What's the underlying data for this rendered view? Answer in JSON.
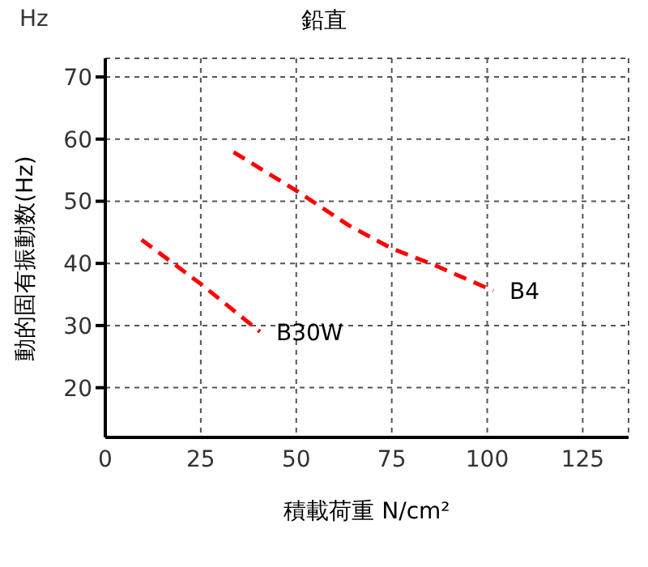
{
  "chart_data": {
    "type": "line",
    "title": "鉛直",
    "xlabel": "積載荷重 N/cm²",
    "ylabel": "動的固有振動数(Hz)",
    "annotations": [
      "Hz"
    ],
    "series": [
      {
        "name": "B30W",
        "color": "#ff0000",
        "x": [
          9.5,
          25,
          40.5
        ],
        "values": [
          43.8,
          36.7,
          29.0
        ]
      },
      {
        "name": "B4",
        "color": "#ff0000",
        "x": [
          33.6,
          50,
          63.8,
          75,
          86.3,
          101.6
        ],
        "values": [
          57.9,
          51.7,
          46.1,
          42.4,
          39.7,
          35.6
        ]
      }
    ],
    "xlim": [
      0,
      137
    ],
    "xticks": [
      0,
      25,
      50,
      75,
      100,
      125
    ],
    "ylim": [
      12,
      73
    ],
    "yticks": [
      20,
      30,
      40,
      50,
      60,
      70
    ],
    "grid": true,
    "marker": "none",
    "line_style": "dashed"
  }
}
